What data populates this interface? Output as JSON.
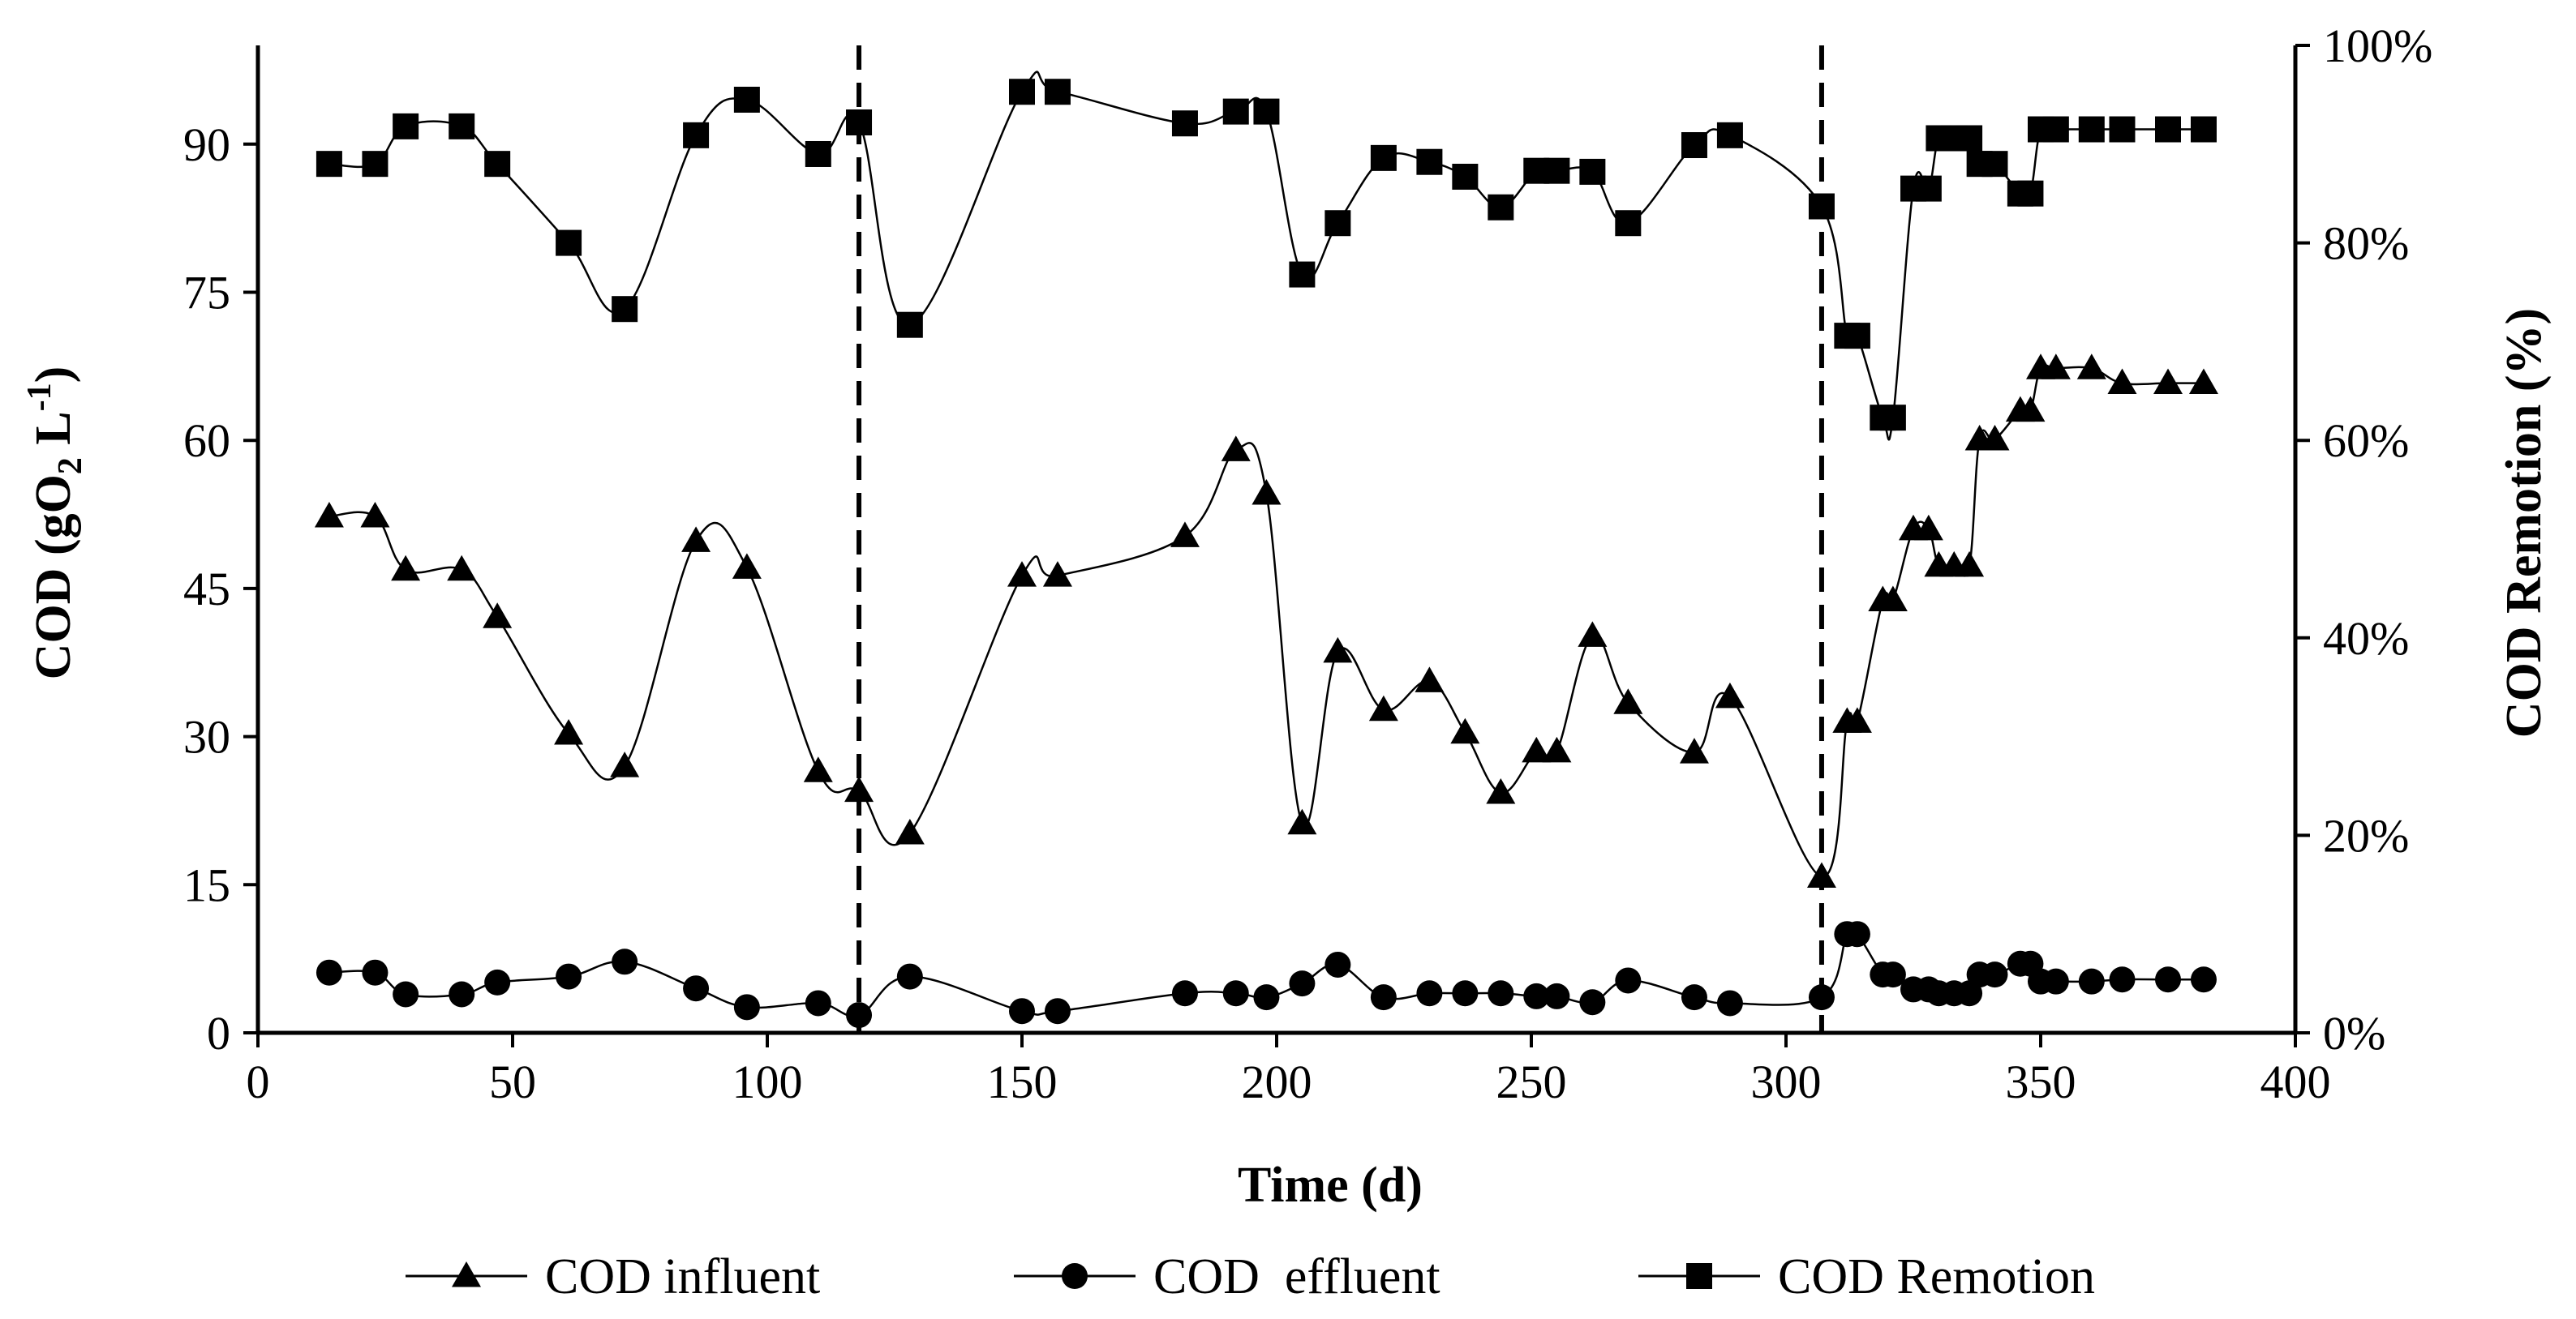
{
  "chart_data": {
    "type": "line",
    "title": "",
    "xlabel": "Time (d)",
    "ylabel_left": {
      "main": "COD (gO",
      "sub": "2",
      "mid": " L",
      "sup": "-1",
      "end": ")"
    },
    "ylabel_right": "COD Remotion (%)",
    "xlim": [
      0,
      400
    ],
    "ylim_left": [
      0,
      100
    ],
    "ylim_right": [
      0,
      100
    ],
    "x_ticks": [
      0,
      50,
      100,
      150,
      200,
      250,
      300,
      350,
      400
    ],
    "x_tick_labels": [
      "0",
      "50",
      "100",
      "150",
      "200",
      "250",
      "300",
      "350",
      "400"
    ],
    "y_left_ticks": [
      0,
      15,
      30,
      45,
      60,
      75,
      90
    ],
    "y_left_tick_labels": [
      "0",
      "15",
      "30",
      "45",
      "60",
      "75",
      "90"
    ],
    "y_right_ticks": [
      0,
      20,
      40,
      60,
      80,
      100
    ],
    "y_right_tick_labels": [
      "0%",
      "20%",
      "40%",
      "60%",
      "80%",
      "100%"
    ],
    "grid": false,
    "legend_position": "bottom",
    "vertical_dashed_lines_x": [
      118,
      307
    ],
    "series": [
      {
        "name": "COD influent",
        "marker": "triangle",
        "axis": "left",
        "points": [
          [
            14,
            52.3
          ],
          [
            23,
            52.3
          ],
          [
            29,
            46.9
          ],
          [
            40,
            46.9
          ],
          [
            47,
            42.1
          ],
          [
            61,
            30.3
          ],
          [
            72,
            27.0
          ],
          [
            86,
            49.8
          ],
          [
            96,
            47.1
          ],
          [
            110,
            26.5
          ],
          [
            118,
            24.5
          ],
          [
            128,
            20.2
          ],
          [
            150,
            46.3
          ],
          [
            157,
            46.3
          ],
          [
            182,
            50.3
          ],
          [
            192,
            59.0
          ],
          [
            198,
            54.6
          ],
          [
            205,
            21.2
          ],
          [
            212,
            38.6
          ],
          [
            221,
            32.7
          ],
          [
            230,
            35.6
          ],
          [
            237,
            30.4
          ],
          [
            244,
            24.3
          ],
          [
            251,
            28.5
          ],
          [
            255,
            28.5
          ],
          [
            262,
            40.2
          ],
          [
            269,
            33.4
          ],
          [
            282,
            28.4
          ],
          [
            289,
            34.0
          ],
          [
            307,
            15.8
          ],
          [
            312,
            31.5
          ],
          [
            314,
            31.5
          ],
          [
            319,
            43.8
          ],
          [
            321,
            43.8
          ],
          [
            325,
            51.0
          ],
          [
            328,
            51.0
          ],
          [
            330,
            47.3
          ],
          [
            333,
            47.3
          ],
          [
            336,
            47.3
          ],
          [
            338,
            60.1
          ],
          [
            341,
            60.1
          ],
          [
            346,
            63.0
          ],
          [
            348,
            63.0
          ],
          [
            350,
            67.3
          ],
          [
            353,
            67.3
          ],
          [
            360,
            67.3
          ],
          [
            366,
            65.8
          ],
          [
            375,
            65.8
          ],
          [
            382,
            65.8
          ]
        ]
      },
      {
        "name": "COD  effluent",
        "marker": "circle",
        "axis": "left",
        "points": [
          [
            14,
            6.1
          ],
          [
            23,
            6.1
          ],
          [
            29,
            3.9
          ],
          [
            40,
            3.9
          ],
          [
            47,
            5.1
          ],
          [
            61,
            5.7
          ],
          [
            72,
            7.2
          ],
          [
            86,
            4.5
          ],
          [
            96,
            2.6
          ],
          [
            110,
            3.0
          ],
          [
            118,
            1.8
          ],
          [
            128,
            5.7
          ],
          [
            150,
            2.2
          ],
          [
            157,
            2.2
          ],
          [
            182,
            4.0
          ],
          [
            192,
            4.0
          ],
          [
            198,
            3.6
          ],
          [
            205,
            5.0
          ],
          [
            212,
            6.9
          ],
          [
            221,
            3.6
          ],
          [
            230,
            4.0
          ],
          [
            237,
            4.0
          ],
          [
            244,
            4.0
          ],
          [
            251,
            3.7
          ],
          [
            255,
            3.7
          ],
          [
            262,
            3.1
          ],
          [
            269,
            5.3
          ],
          [
            282,
            3.6
          ],
          [
            289,
            3.0
          ],
          [
            307,
            3.6
          ],
          [
            312,
            10.0
          ],
          [
            314,
            10.0
          ],
          [
            319,
            5.9
          ],
          [
            321,
            5.9
          ],
          [
            325,
            4.4
          ],
          [
            328,
            4.4
          ],
          [
            330,
            4.0
          ],
          [
            333,
            4.0
          ],
          [
            336,
            4.0
          ],
          [
            338,
            5.9
          ],
          [
            341,
            5.9
          ],
          [
            346,
            7.0
          ],
          [
            348,
            7.0
          ],
          [
            350,
            5.2
          ],
          [
            353,
            5.2
          ],
          [
            360,
            5.2
          ],
          [
            366,
            5.4
          ],
          [
            375,
            5.4
          ],
          [
            382,
            5.4
          ]
        ]
      },
      {
        "name": "COD Remotion",
        "marker": "square",
        "axis": "right",
        "points": [
          [
            14,
            88
          ],
          [
            23,
            88
          ],
          [
            29,
            91.8
          ],
          [
            40,
            91.8
          ],
          [
            47,
            88
          ],
          [
            61,
            80
          ],
          [
            72,
            73.3
          ],
          [
            86,
            90.9
          ],
          [
            96,
            94.5
          ],
          [
            110,
            89
          ],
          [
            118,
            92.2
          ],
          [
            128,
            71.7
          ],
          [
            150,
            95.3
          ],
          [
            157,
            95.3
          ],
          [
            182,
            92.1
          ],
          [
            192,
            93.3
          ],
          [
            198,
            93.3
          ],
          [
            205,
            76.8
          ],
          [
            212,
            82
          ],
          [
            221,
            88.6
          ],
          [
            230,
            88.2
          ],
          [
            237,
            86.7
          ],
          [
            244,
            83.6
          ],
          [
            251,
            87.3
          ],
          [
            255,
            87.3
          ],
          [
            262,
            87.2
          ],
          [
            269,
            82
          ],
          [
            282,
            89.9
          ],
          [
            289,
            90.9
          ],
          [
            307,
            83.7
          ],
          [
            312,
            70.6
          ],
          [
            314,
            70.6
          ],
          [
            319,
            62.3
          ],
          [
            321,
            62.3
          ],
          [
            325,
            85.5
          ],
          [
            328,
            85.5
          ],
          [
            330,
            90.6
          ],
          [
            333,
            90.6
          ],
          [
            336,
            90.6
          ],
          [
            338,
            88
          ],
          [
            341,
            88
          ],
          [
            346,
            85
          ],
          [
            348,
            85
          ],
          [
            350,
            91.5
          ],
          [
            353,
            91.5
          ],
          [
            360,
            91.5
          ],
          [
            366,
            91.5
          ],
          [
            375,
            91.5
          ],
          [
            382,
            91.5
          ]
        ]
      }
    ]
  }
}
